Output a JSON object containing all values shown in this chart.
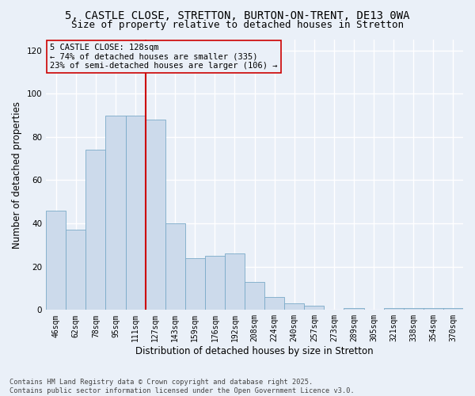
{
  "title_line1": "5, CASTLE CLOSE, STRETTON, BURTON-ON-TRENT, DE13 0WA",
  "title_line2": "Size of property relative to detached houses in Stretton",
  "xlabel": "Distribution of detached houses by size in Stretton",
  "ylabel": "Number of detached properties",
  "bar_color": "#ccdaeb",
  "bar_edge_color": "#7aaac8",
  "vline_color": "#cc0000",
  "vline_position": 4.5,
  "categories": [
    "46sqm",
    "62sqm",
    "78sqm",
    "95sqm",
    "111sqm",
    "127sqm",
    "143sqm",
    "159sqm",
    "176sqm",
    "192sqm",
    "208sqm",
    "224sqm",
    "240sqm",
    "257sqm",
    "273sqm",
    "289sqm",
    "305sqm",
    "321sqm",
    "338sqm",
    "354sqm",
    "370sqm"
  ],
  "values": [
    46,
    37,
    74,
    90,
    90,
    88,
    40,
    24,
    25,
    26,
    13,
    6,
    3,
    2,
    0,
    1,
    0,
    1,
    1,
    1,
    1
  ],
  "ylim": [
    0,
    125
  ],
  "yticks": [
    0,
    20,
    40,
    60,
    80,
    100,
    120
  ],
  "annotation_text": "5 CASTLE CLOSE: 128sqm\n← 74% of detached houses are smaller (335)\n23% of semi-detached houses are larger (106) →",
  "background_color": "#eaf0f8",
  "footer_text": "Contains HM Land Registry data © Crown copyright and database right 2025.\nContains public sector information licensed under the Open Government Licence v3.0.",
  "grid_color": "#ffffff",
  "title_fontsize": 10,
  "subtitle_fontsize": 9,
  "tick_fontsize": 7,
  "label_fontsize": 8.5,
  "ann_fontsize": 7.5
}
